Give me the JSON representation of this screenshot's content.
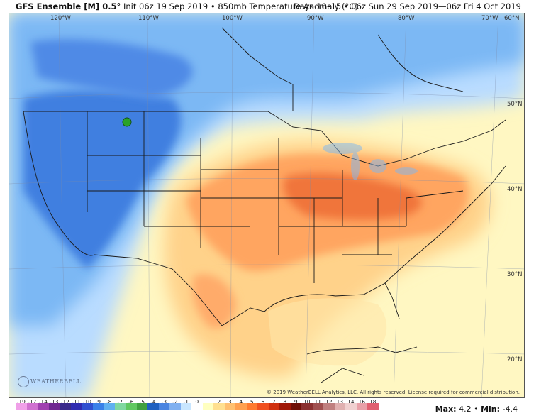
{
  "header": {
    "model": "GFS Ensemble [M] 0.5°",
    "init": "Init 06z 19 Sep 2019",
    "field": "850mb Temperature Anomaly (°C)",
    "valid": "Days 10–15 • 06z Sun 29 Sep 2019—06z Fri 4 Oct 2019"
  },
  "lon_labels": [
    "120°W",
    "110°W",
    "100°W",
    "90°W",
    "80°W",
    "70°W",
    "60°N"
  ],
  "lat_labels": [
    "50°N",
    "40°N",
    "30°N",
    "20°N"
  ],
  "copyright": "© 2019 WeatherBELL Analytics, LLC. All rights reserved. License required for commercial distribution.",
  "logo": "WEATHERBELL",
  "colorbar": {
    "labels": [
      "-19",
      "-17",
      "-14",
      "-13",
      "-12",
      "-11",
      "-10",
      "-9",
      "-8",
      "-7",
      "-6",
      "-5",
      "-4",
      "-3",
      "-2",
      "-1",
      "0",
      "1",
      "2",
      "3",
      "4",
      "5",
      "6",
      "7",
      "8",
      "9",
      "10",
      "11",
      "12",
      "13",
      "14",
      "16",
      "18"
    ],
    "colors": [
      "#f0a0e8",
      "#d070d0",
      "#a040b0",
      "#702890",
      "#3a2a8a",
      "#302cb0",
      "#3050d0",
      "#3a80e8",
      "#60b0f0",
      "#80d8a0",
      "#60c860",
      "#40a040",
      "#2060c0",
      "#4a84e0",
      "#80b0f0",
      "#c8e6ff",
      "#ffffff",
      "#ffffc0",
      "#ffe090",
      "#ffc070",
      "#ffa050",
      "#ff7a30",
      "#f05020",
      "#d03010",
      "#a01808",
      "#701008",
      "#8a3030",
      "#a05050",
      "#c08080",
      "#e0b0b0",
      "#f0d0d0",
      "#e8a0a8",
      "#e06070"
    ]
  },
  "stats": {
    "max_label": "Max:",
    "max_value": "4.2",
    "min_label": "Min:",
    "min_value": "-4.4"
  }
}
